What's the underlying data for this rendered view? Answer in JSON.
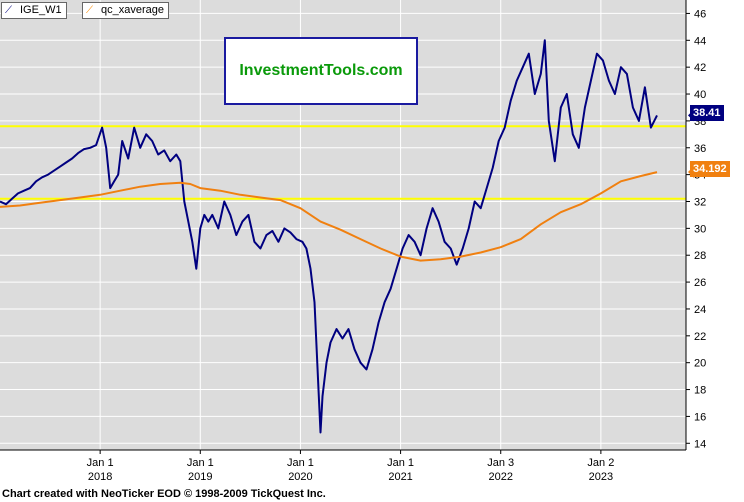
{
  "legend": [
    {
      "icon": "line-icon",
      "label": "IGE_W1",
      "color": "#000080"
    },
    {
      "icon": "line-icon",
      "label": "qc_xaverage",
      "color": "#ff8c00"
    }
  ],
  "watermark": "InvestmentTools.com",
  "footer": "Chart created with NeoTicker EOD © 1998-2009 TickQuest Inc.",
  "colors": {
    "background": "#dcdcdc",
    "price": "#000080",
    "average": "#f08010",
    "hline": "#ffff00"
  },
  "chart_data": {
    "type": "line",
    "title": "",
    "xlabel": "",
    "ylabel": "",
    "ylim": [
      13.5,
      47
    ],
    "xlim": [
      2017.0,
      2023.85
    ],
    "y_ticks": [
      14,
      16,
      18,
      20,
      22,
      24,
      26,
      28,
      30,
      32,
      34,
      36,
      38,
      40,
      42,
      44,
      46
    ],
    "x_ticks": [
      {
        "x": 2018.0,
        "label_top": "Jan 1",
        "label_bottom": "2018"
      },
      {
        "x": 2019.0,
        "label_top": "Jan 1",
        "label_bottom": "2019"
      },
      {
        "x": 2020.0,
        "label_top": "Jan 1",
        "label_bottom": "2020"
      },
      {
        "x": 2021.0,
        "label_top": "Jan 1",
        "label_bottom": "2021"
      },
      {
        "x": 2022.0,
        "label_top": "Jan 3",
        "label_bottom": "2022"
      },
      {
        "x": 2023.0,
        "label_top": "Jan 2",
        "label_bottom": "2023"
      }
    ],
    "grid": true,
    "horizontal_lines": [
      37.6,
      32.2
    ],
    "last_values": [
      {
        "series": "IGE_W1",
        "value": "38.41",
        "y": 38.41,
        "color": "#000080"
      },
      {
        "series": "qc_xaverage",
        "value": "34.192",
        "y": 34.192,
        "color": "#f08010"
      }
    ],
    "series": [
      {
        "name": "IGE_W1",
        "color": "#000080",
        "x": [
          2017.0,
          2017.06,
          2017.12,
          2017.18,
          2017.24,
          2017.3,
          2017.36,
          2017.42,
          2017.48,
          2017.54,
          2017.6,
          2017.66,
          2017.72,
          2017.78,
          2017.84,
          2017.9,
          2017.96,
          2018.02,
          2018.06,
          2018.1,
          2018.14,
          2018.18,
          2018.22,
          2018.28,
          2018.34,
          2018.4,
          2018.46,
          2018.52,
          2018.58,
          2018.64,
          2018.7,
          2018.76,
          2018.8,
          2018.84,
          2018.88,
          2018.92,
          2018.96,
          2019.0,
          2019.04,
          2019.08,
          2019.12,
          2019.18,
          2019.24,
          2019.3,
          2019.36,
          2019.42,
          2019.48,
          2019.54,
          2019.6,
          2019.66,
          2019.72,
          2019.78,
          2019.84,
          2019.9,
          2019.96,
          2020.02,
          2020.06,
          2020.1,
          2020.14,
          2020.18,
          2020.2,
          2020.22,
          2020.26,
          2020.3,
          2020.36,
          2020.42,
          2020.48,
          2020.54,
          2020.6,
          2020.66,
          2020.72,
          2020.78,
          2020.84,
          2020.9,
          2020.96,
          2021.02,
          2021.08,
          2021.14,
          2021.2,
          2021.26,
          2021.32,
          2021.38,
          2021.44,
          2021.5,
          2021.56,
          2021.62,
          2021.68,
          2021.74,
          2021.8,
          2021.86,
          2021.92,
          2021.98,
          2022.04,
          2022.1,
          2022.16,
          2022.22,
          2022.28,
          2022.34,
          2022.4,
          2022.44,
          2022.48,
          2022.54,
          2022.6,
          2022.66,
          2022.72,
          2022.78,
          2022.84,
          2022.9,
          2022.96,
          2023.02,
          2023.08,
          2023.14,
          2023.2,
          2023.26,
          2023.32,
          2023.38,
          2023.44,
          2023.5,
          2023.56
        ],
        "values": [
          32.0,
          31.8,
          32.2,
          32.6,
          32.8,
          33.0,
          33.5,
          33.8,
          34.0,
          34.3,
          34.6,
          34.9,
          35.2,
          35.6,
          35.9,
          36.0,
          36.2,
          37.5,
          36.0,
          33.0,
          33.5,
          34.0,
          36.5,
          35.2,
          37.5,
          36.0,
          37.0,
          36.5,
          35.5,
          35.8,
          35.0,
          35.5,
          35.0,
          32.0,
          30.5,
          29.0,
          27.0,
          30.0,
          31.0,
          30.5,
          31.0,
          30.0,
          32.0,
          31.0,
          29.5,
          30.5,
          31.0,
          29.0,
          28.5,
          29.5,
          29.8,
          29.0,
          30.0,
          29.7,
          29.2,
          29.0,
          28.5,
          27.0,
          24.5,
          18.0,
          14.8,
          17.5,
          20.0,
          21.5,
          22.5,
          21.8,
          22.5,
          21.0,
          20.0,
          19.5,
          21.0,
          23.0,
          24.5,
          25.5,
          27.0,
          28.5,
          29.5,
          29.0,
          28.0,
          30.0,
          31.5,
          30.5,
          29.0,
          28.5,
          27.3,
          28.5,
          30.0,
          32.0,
          31.5,
          33.0,
          34.5,
          36.5,
          37.5,
          39.5,
          41.0,
          42.0,
          43.0,
          40.0,
          41.5,
          44.0,
          38.0,
          35.0,
          39.0,
          40.0,
          37.0,
          36.0,
          39.0,
          41.0,
          43.0,
          42.5,
          41.0,
          40.0,
          42.0,
          41.5,
          39.0,
          38.0,
          40.5,
          37.5,
          38.41
        ]
      },
      {
        "name": "qc_xaverage",
        "color": "#f08010",
        "x": [
          2017.0,
          2017.2,
          2017.4,
          2017.6,
          2017.8,
          2018.0,
          2018.2,
          2018.4,
          2018.6,
          2018.8,
          2018.9,
          2019.0,
          2019.2,
          2019.4,
          2019.6,
          2019.8,
          2020.0,
          2020.2,
          2020.4,
          2020.6,
          2020.8,
          2021.0,
          2021.2,
          2021.4,
          2021.6,
          2021.8,
          2022.0,
          2022.2,
          2022.4,
          2022.6,
          2022.8,
          2023.0,
          2023.2,
          2023.4,
          2023.56
        ],
        "values": [
          31.6,
          31.7,
          31.9,
          32.1,
          32.3,
          32.5,
          32.8,
          33.1,
          33.3,
          33.4,
          33.3,
          33.0,
          32.8,
          32.5,
          32.3,
          32.1,
          31.5,
          30.5,
          29.9,
          29.2,
          28.5,
          27.9,
          27.6,
          27.7,
          27.9,
          28.2,
          28.6,
          29.2,
          30.3,
          31.2,
          31.8,
          32.6,
          33.5,
          33.9,
          34.19
        ]
      }
    ]
  }
}
